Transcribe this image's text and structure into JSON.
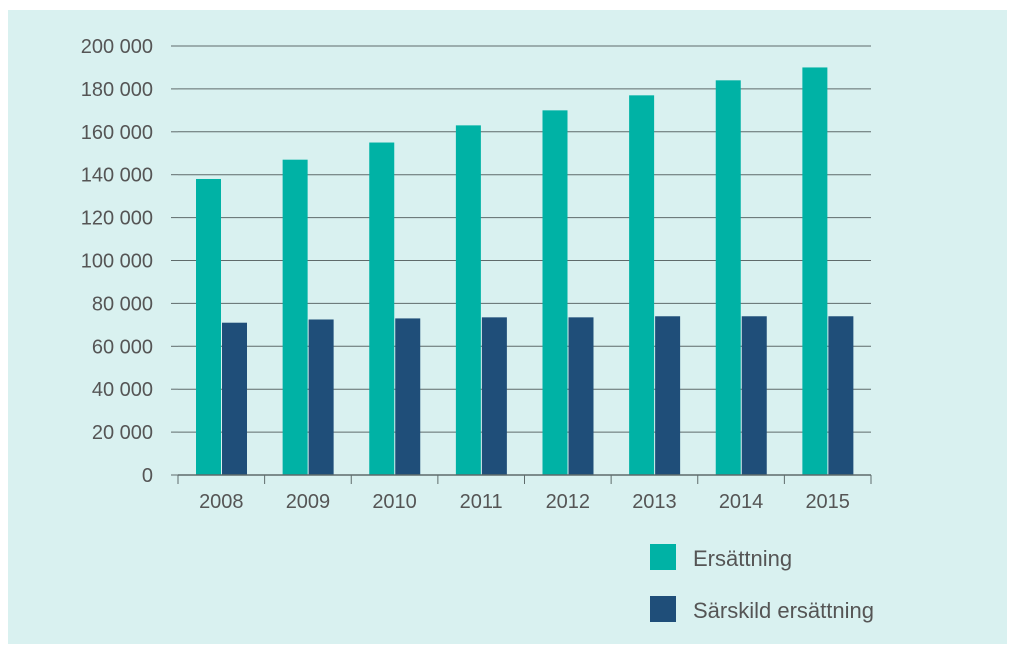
{
  "chart_data": {
    "type": "bar",
    "categories": [
      "2008",
      "2009",
      "2010",
      "2011",
      "2012",
      "2013",
      "2014",
      "2015"
    ],
    "series": [
      {
        "name": "Ersättning",
        "color": "#00b2a5",
        "values": [
          138000,
          147000,
          155000,
          163000,
          170000,
          177000,
          184000,
          190000
        ]
      },
      {
        "name": "Särskild ersättning",
        "color": "#1f4e79",
        "values": [
          71000,
          72500,
          73000,
          73500,
          73500,
          74000,
          74000,
          74000
        ]
      }
    ],
    "yticks": [
      0,
      20000,
      40000,
      60000,
      80000,
      100000,
      120000,
      140000,
      160000,
      180000,
      200000
    ],
    "ytick_labels": [
      "0",
      "20 000",
      "40 000",
      "60 000",
      "80 000",
      "100 000",
      "120 000",
      "140 000",
      "160 000",
      "180 000",
      "200 000"
    ],
    "ylim": [
      0,
      200000
    ],
    "grid": true,
    "legend_position": "bottom-right",
    "gridline_color": "#5f6b6b",
    "background_color": "#d9f1f0"
  }
}
